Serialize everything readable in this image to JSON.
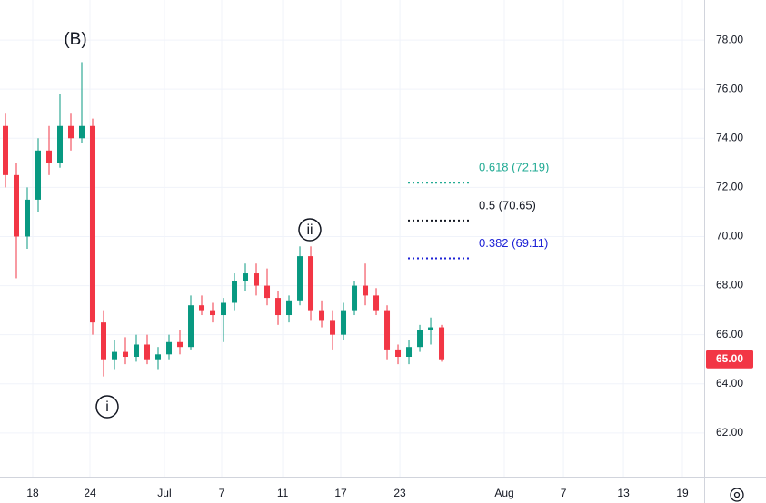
{
  "chart_data": {
    "type": "candlestick",
    "categories": [
      null,
      null,
      null,
      null,
      null,
      null,
      null,
      null,
      null,
      null,
      null,
      null,
      null,
      null,
      null,
      null,
      null,
      null,
      null,
      null,
      null,
      null,
      null,
      null,
      null,
      null,
      null,
      null,
      null,
      null,
      null,
      null,
      null,
      null,
      null,
      null,
      null,
      null,
      null,
      null,
      null
    ],
    "open": [
      74.5,
      72.5,
      70,
      71.5,
      73.5,
      73,
      74.5,
      74,
      74.5,
      66.5,
      65,
      65.3,
      65.1,
      65.6,
      65,
      65.2,
      65.7,
      65.5,
      67.2,
      67,
      66.8,
      67.3,
      68.2,
      68.5,
      68,
      67.5,
      66.8,
      67.4,
      69.2,
      67,
      66.6,
      66,
      67,
      68,
      67.6,
      67,
      65.4,
      65.1,
      65.5,
      66.2,
      66.3
    ],
    "high": [
      75,
      73,
      72,
      74,
      74.5,
      75.8,
      75,
      77.1,
      74.8,
      67,
      65.8,
      65.9,
      66,
      66,
      65.5,
      66,
      66.2,
      67.6,
      67.6,
      67.3,
      67.5,
      68.5,
      68.9,
      68.9,
      68.7,
      67.8,
      67.6,
      69.6,
      69.6,
      67.4,
      67,
      67.3,
      68.2,
      68.9,
      67.9,
      67.2,
      65.6,
      65.8,
      66.4,
      66.7,
      66.4
    ],
    "low": [
      72,
      68.3,
      69.5,
      71,
      72.5,
      72.8,
      73.5,
      73.8,
      66,
      64.3,
      64.6,
      64.8,
      64.9,
      64.8,
      64.6,
      65,
      65.2,
      65.4,
      66.8,
      66.5,
      65.7,
      67,
      67.8,
      67.6,
      67.2,
      66.4,
      66.5,
      67.2,
      66.6,
      66.3,
      65.4,
      65.8,
      66.8,
      67.2,
      66.8,
      65,
      64.8,
      64.8,
      65.3,
      65.6,
      64.9
    ],
    "close": [
      72.5,
      70,
      71.5,
      73.5,
      73,
      74.5,
      74,
      74.5,
      66.5,
      65,
      65.3,
      65.1,
      65.6,
      65,
      65.2,
      65.7,
      65.5,
      67.2,
      67,
      66.8,
      67.3,
      68.2,
      68.5,
      68,
      67.5,
      66.8,
      67.4,
      69.2,
      67,
      66.6,
      66,
      67,
      68,
      67.6,
      67,
      65.4,
      65.1,
      65.5,
      66.2,
      66.3,
      65
    ],
    "up_color": "#089981",
    "down_color": "#f23645",
    "xlim": [
      -0.5,
      64.08
    ],
    "xticks": [
      {
        "value": 2.5,
        "label": "18"
      },
      {
        "value": 7.75,
        "label": "24"
      },
      {
        "value": 14.58,
        "label": "Jul"
      },
      {
        "value": 19.83,
        "label": "7"
      },
      {
        "value": 25.42,
        "label": "11"
      },
      {
        "value": 30.75,
        "label": "17"
      },
      {
        "value": 36.17,
        "label": "23"
      },
      {
        "value": 45.75,
        "label": "Aug"
      },
      {
        "value": 51.17,
        "label": "7"
      },
      {
        "value": 56.67,
        "label": "13"
      },
      {
        "value": 62.08,
        "label": "19"
      }
    ],
    "ylim": [
      60.22,
      79.63
    ],
    "yticks": [
      {
        "value": 62,
        "label": "62.00"
      },
      {
        "value": 64,
        "label": "64.00"
      },
      {
        "value": 66,
        "label": "66.00"
      },
      {
        "value": 68,
        "label": "68.00"
      },
      {
        "value": 70,
        "label": "70.00"
      },
      {
        "value": 72,
        "label": "72.00"
      },
      {
        "value": 74,
        "label": "74.00"
      },
      {
        "value": 76,
        "label": "76.00"
      },
      {
        "value": 78,
        "label": "78.00"
      }
    ],
    "grid": true,
    "fib_levels": [
      {
        "label": "0.618 (72.19)",
        "value": 72.19,
        "color": "#22ab94"
      },
      {
        "label": "0.5 (70.65)",
        "value": 70.65,
        "color": "#131722"
      },
      {
        "label": "0.382 (69.11)",
        "value": 69.11,
        "color": "#1e22d6"
      }
    ],
    "last_price": {
      "value": 65.0,
      "label": "65.00",
      "color": "#f23645"
    },
    "wave_labels": [
      "(B)",
      "i",
      "ii"
    ]
  }
}
